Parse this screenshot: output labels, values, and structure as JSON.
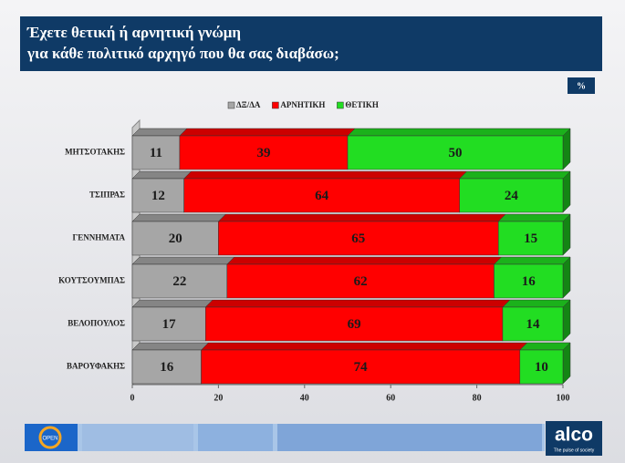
{
  "chart_data": {
    "type": "stacked-bar-horizontal",
    "title": [
      "Έχετε θετική ή αρνητική γνώμη",
      "για κάθε πολιτικό αρχηγό που θα σας διαβάσω;"
    ],
    "unit_badge": "%",
    "categories": [
      "ΜΗΤΣΟΤΑΚΗΣ",
      "ΤΣΙΠΡΑΣ",
      "ΓΕΝΝΗΜΑΤΑ",
      "ΚΟΥΤΣΟΥΜΠΑΣ",
      "ΒΕΛΟΠΟΥΛΟΣ",
      "ΒΑΡΟΥΦΑΚΗΣ"
    ],
    "series": [
      {
        "name": "ΔΞ/ΔΑ",
        "color": "#a6a6a6",
        "values": [
          11,
          12,
          20,
          22,
          17,
          16
        ]
      },
      {
        "name": "ΑΡΝΗΤΙΚΗ",
        "color": "#ff0000",
        "values": [
          39,
          64,
          65,
          62,
          69,
          74
        ]
      },
      {
        "name": "ΘΕΤΙΚΗ",
        "color": "#22dd22",
        "values": [
          50,
          24,
          15,
          16,
          14,
          10
        ]
      }
    ],
    "xlim": [
      0,
      100
    ],
    "xticks": [
      0,
      20,
      40,
      60,
      80,
      100
    ]
  },
  "footer": {
    "channel": "OPEN",
    "brand": "alco",
    "tagline": "The pulse of society"
  }
}
